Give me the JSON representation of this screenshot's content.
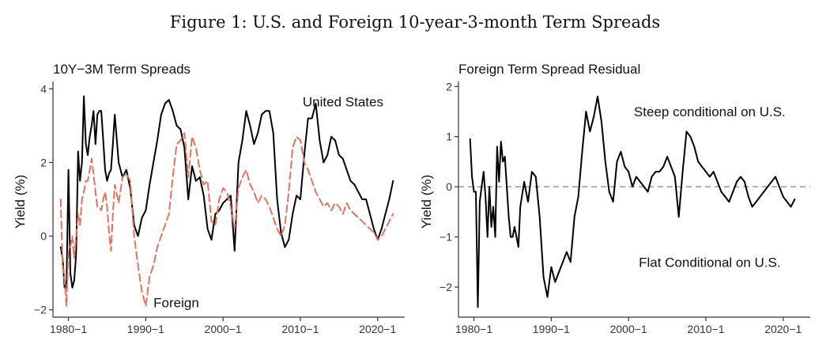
{
  "figure_title": "Figure 1: U.S. and Foreign 10-year-3-month Term Spreads",
  "colors": {
    "us": "#000000",
    "foreign": "#E07360",
    "zero_line": "#999999",
    "axis": "#333333"
  },
  "chart_data": [
    {
      "type": "line",
      "title": "10Y−3M Term Spreads",
      "ylabel": "Yield (%)",
      "xlabel": "",
      "xlim": [
        1978.0,
        2023.5
      ],
      "ylim": [
        -2.2,
        4.2
      ],
      "xticks": [
        1980,
        1990,
        2000,
        2010,
        2020
      ],
      "xtick_labels": [
        "1980−1",
        "1990−1",
        "2000−1",
        "2010−1",
        "2020−1"
      ],
      "yticks": [
        -2,
        0,
        2,
        4
      ],
      "ytick_labels": [
        "−2",
        "0",
        "2",
        "4"
      ],
      "series": [
        {
          "name": "United States",
          "color": "#000000",
          "dash": false,
          "label_x": 1991.0,
          "label_y": 3.65,
          "x": [
            1979.0,
            1979.25,
            1979.5,
            1979.75,
            1980.0,
            1980.25,
            1980.5,
            1980.75,
            1981.0,
            1981.25,
            1981.5,
            1981.75,
            1982.0,
            1982.25,
            1982.5,
            1982.75,
            1983.0,
            1983.25,
            1983.5,
            1983.75,
            1984.0,
            1984.25,
            1984.5,
            1984.75,
            1985.0,
            1985.25,
            1985.5,
            1985.75,
            1986.0,
            1986.5,
            1987.0,
            1987.5,
            1988.0,
            1988.5,
            1989.0,
            1989.5,
            1990.0,
            1990.5,
            1991.0,
            1991.5,
            1992.0,
            1992.5,
            1993.0,
            1993.5,
            1994.0,
            1994.5,
            1995.0,
            1995.5,
            1996.0,
            1996.5,
            1997.0,
            1997.5,
            1998.0,
            1998.5,
            1999.0,
            1999.5,
            2000.0,
            2000.5,
            2001.0,
            2001.5,
            2002.0,
            2002.5,
            2003.0,
            2003.5,
            2004.0,
            2004.5,
            2005.0,
            2005.5,
            2006.0,
            2006.5,
            2007.0,
            2007.5,
            2008.0,
            2008.5,
            2009.0,
            2009.5,
            2010.0,
            2010.5,
            2011.0,
            2011.5,
            2012.0,
            2012.5,
            2013.0,
            2013.5,
            2014.0,
            2014.5,
            2015.0,
            2015.5,
            2016.0,
            2016.5,
            2017.0,
            2017.5,
            2018.0,
            2018.5,
            2019.0,
            2019.5,
            2020.0,
            2020.5,
            2021.0,
            2021.5,
            2022.0
          ],
          "y": [
            -0.3,
            -0.6,
            -1.4,
            -1.4,
            1.8,
            -1.0,
            -1.4,
            -1.2,
            -0.5,
            2.3,
            1.5,
            2.0,
            3.8,
            2.5,
            2.2,
            2.7,
            3.0,
            3.4,
            2.5,
            3.3,
            3.4,
            3.4,
            2.6,
            1.8,
            1.5,
            1.7,
            1.8,
            2.5,
            3.3,
            2.0,
            1.6,
            1.8,
            1.3,
            0.3,
            0.0,
            0.5,
            0.7,
            1.4,
            2.0,
            2.6,
            3.3,
            3.6,
            3.7,
            3.4,
            3.0,
            2.9,
            2.4,
            1.0,
            1.9,
            1.5,
            1.6,
            1.1,
            0.2,
            -0.1,
            0.6,
            0.7,
            0.9,
            1.0,
            1.1,
            -0.4,
            2.0,
            2.6,
            3.4,
            3.0,
            2.5,
            2.8,
            3.3,
            3.4,
            3.4,
            2.8,
            1.0,
            0.1,
            -0.3,
            -0.1,
            0.6,
            1.1,
            1.0,
            2.2,
            3.2,
            3.2,
            3.6,
            2.6,
            2.0,
            2.2,
            2.7,
            2.6,
            2.2,
            2.1,
            1.8,
            1.5,
            1.4,
            1.2,
            1.0,
            1.0,
            0.6,
            0.2,
            -0.1,
            0.2,
            0.6,
            1.0,
            1.5
          ]
        },
        {
          "name": "Foreign",
          "color": "#E07360",
          "dash": true,
          "label_x": 1991.0,
          "label_y": -1.8,
          "x": [
            1979.0,
            1979.25,
            1979.5,
            1979.75,
            1980.0,
            1980.25,
            1980.5,
            1980.75,
            1981.0,
            1981.25,
            1981.5,
            1981.75,
            1982.0,
            1982.25,
            1982.5,
            1982.75,
            1983.0,
            1983.25,
            1983.5,
            1983.75,
            1984.0,
            1984.25,
            1984.5,
            1984.75,
            1985.0,
            1985.25,
            1985.5,
            1985.75,
            1986.0,
            1986.5,
            1987.0,
            1987.5,
            1988.0,
            1988.5,
            1989.0,
            1989.5,
            1990.0,
            1990.5,
            1991.0,
            1991.5,
            1992.0,
            1992.5,
            1993.0,
            1993.5,
            1994.0,
            1994.5,
            1995.0,
            1995.5,
            1996.0,
            1996.5,
            1997.0,
            1997.5,
            1998.0,
            1998.5,
            1999.0,
            1999.5,
            2000.0,
            2000.5,
            2001.0,
            2001.5,
            2002.0,
            2002.5,
            2003.0,
            2003.5,
            2004.0,
            2004.5,
            2005.0,
            2005.5,
            2006.0,
            2006.5,
            2007.0,
            2007.5,
            2008.0,
            2008.5,
            2009.0,
            2009.5,
            2010.0,
            2010.5,
            2011.0,
            2011.5,
            2012.0,
            2012.5,
            2013.0,
            2013.5,
            2014.0,
            2014.5,
            2015.0,
            2015.5,
            2016.0,
            2016.5,
            2017.0,
            2017.5,
            2018.0,
            2018.5,
            2019.0,
            2019.5,
            2020.0,
            2020.5,
            2021.0,
            2021.5,
            2022.0
          ],
          "y": [
            1.0,
            -0.8,
            -1.2,
            -1.9,
            -0.4,
            -0.3,
            0.0,
            -0.6,
            0.0,
            0.6,
            0.3,
            1.0,
            1.2,
            1.5,
            1.5,
            1.8,
            2.1,
            1.7,
            1.2,
            0.8,
            0.8,
            0.7,
            1.0,
            1.2,
            0.8,
            0.1,
            -0.4,
            0.6,
            1.4,
            0.9,
            1.6,
            1.7,
            1.5,
            0.0,
            -0.8,
            -1.5,
            -1.9,
            -1.1,
            -0.8,
            -0.3,
            0.0,
            0.3,
            0.6,
            1.6,
            2.5,
            2.6,
            2.8,
            1.6,
            2.7,
            2.4,
            1.8,
            1.4,
            1.5,
            0.4,
            0.3,
            1.0,
            1.3,
            1.2,
            0.8,
            0.2,
            1.3,
            1.6,
            1.8,
            1.4,
            1.2,
            0.9,
            1.1,
            1.0,
            0.8,
            0.5,
            0.2,
            0.0,
            0.3,
            1.2,
            2.4,
            2.7,
            2.6,
            2.0,
            1.8,
            1.5,
            1.2,
            1.0,
            0.8,
            0.9,
            0.7,
            0.9,
            0.8,
            0.6,
            0.9,
            0.7,
            0.6,
            0.5,
            0.4,
            0.3,
            0.2,
            0.1,
            -0.1,
            0.0,
            0.2,
            0.4,
            0.6
          ]
        }
      ]
    },
    {
      "type": "line",
      "title": "Foreign Term Spread Residual",
      "ylabel": "Yield (%)",
      "xlabel": "",
      "xlim": [
        1978.0,
        2023.5
      ],
      "ylim": [
        -2.6,
        2.1
      ],
      "xticks": [
        1980,
        1990,
        2000,
        2010,
        2020
      ],
      "xtick_labels": [
        "1980−1",
        "1990−1",
        "2000−1",
        "2010−1",
        "2020−1"
      ],
      "yticks": [
        -2,
        -1,
        0,
        1,
        2
      ],
      "ytick_labels": [
        "−2",
        "−1",
        "0",
        "1",
        "2"
      ],
      "reference_line": 0,
      "annotations": [
        {
          "text": "Steep conditional on U.S.",
          "x": 2010.5,
          "y": 1.5
        },
        {
          "text": "Flat Conditional on U.S.",
          "x": 2010.5,
          "y": -1.5
        }
      ],
      "series": [
        {
          "name": "Residual",
          "color": "#000000",
          "dash": false,
          "x": [
            1979.5,
            1979.75,
            1980.0,
            1980.25,
            1980.5,
            1980.75,
            1981.0,
            1981.25,
            1981.5,
            1981.75,
            1982.0,
            1982.25,
            1982.5,
            1982.75,
            1983.0,
            1983.25,
            1983.5,
            1983.75,
            1984.0,
            1984.25,
            1984.5,
            1984.75,
            1985.0,
            1985.25,
            1985.5,
            1985.75,
            1986.0,
            1986.5,
            1987.0,
            1987.5,
            1988.0,
            1988.5,
            1989.0,
            1989.5,
            1990.0,
            1990.5,
            1991.0,
            1991.5,
            1992.0,
            1992.5,
            1993.0,
            1993.5,
            1994.0,
            1994.5,
            1995.0,
            1995.5,
            1996.0,
            1996.5,
            1997.0,
            1997.5,
            1998.0,
            1998.5,
            1999.0,
            1999.5,
            2000.0,
            2000.5,
            2001.0,
            2001.5,
            2002.0,
            2002.5,
            2003.0,
            2003.5,
            2004.0,
            2004.5,
            2005.0,
            2005.5,
            2006.0,
            2006.5,
            2007.0,
            2007.5,
            2008.0,
            2008.5,
            2009.0,
            2009.5,
            2010.0,
            2010.5,
            2011.0,
            2011.5,
            2012.0,
            2012.5,
            2013.0,
            2013.5,
            2014.0,
            2014.5,
            2015.0,
            2015.5,
            2016.0,
            2016.5,
            2017.0,
            2017.5,
            2018.0,
            2018.5,
            2019.0,
            2019.5,
            2020.0,
            2020.5,
            2021.0,
            2021.5
          ],
          "y": [
            0.95,
            0.2,
            -0.1,
            -0.1,
            -2.4,
            -0.3,
            0.0,
            0.3,
            -0.2,
            -1.0,
            0.0,
            -0.8,
            -0.4,
            -1.0,
            0.8,
            0.1,
            0.9,
            0.5,
            0.6,
            0.0,
            -0.6,
            -1.0,
            -1.0,
            -0.8,
            -1.0,
            -1.2,
            -0.4,
            0.1,
            -0.3,
            0.3,
            0.2,
            -0.6,
            -1.8,
            -2.2,
            -1.6,
            -1.9,
            -1.7,
            -1.5,
            -1.3,
            -1.5,
            -0.6,
            -0.2,
            0.7,
            1.5,
            1.1,
            1.4,
            1.8,
            1.3,
            0.5,
            -0.1,
            -0.3,
            0.5,
            0.7,
            0.4,
            0.3,
            0.0,
            0.2,
            0.1,
            0.0,
            -0.1,
            0.2,
            0.3,
            0.3,
            0.4,
            0.6,
            0.4,
            0.2,
            -0.6,
            0.3,
            1.1,
            1.0,
            0.8,
            0.5,
            0.4,
            0.3,
            0.2,
            0.3,
            0.1,
            -0.1,
            -0.2,
            -0.3,
            -0.1,
            0.1,
            0.2,
            0.1,
            -0.2,
            -0.4,
            -0.3,
            -0.2,
            -0.1,
            0.0,
            0.1,
            0.2,
            0.0,
            -0.2,
            -0.3,
            -0.4,
            -0.25
          ]
        }
      ]
    }
  ]
}
